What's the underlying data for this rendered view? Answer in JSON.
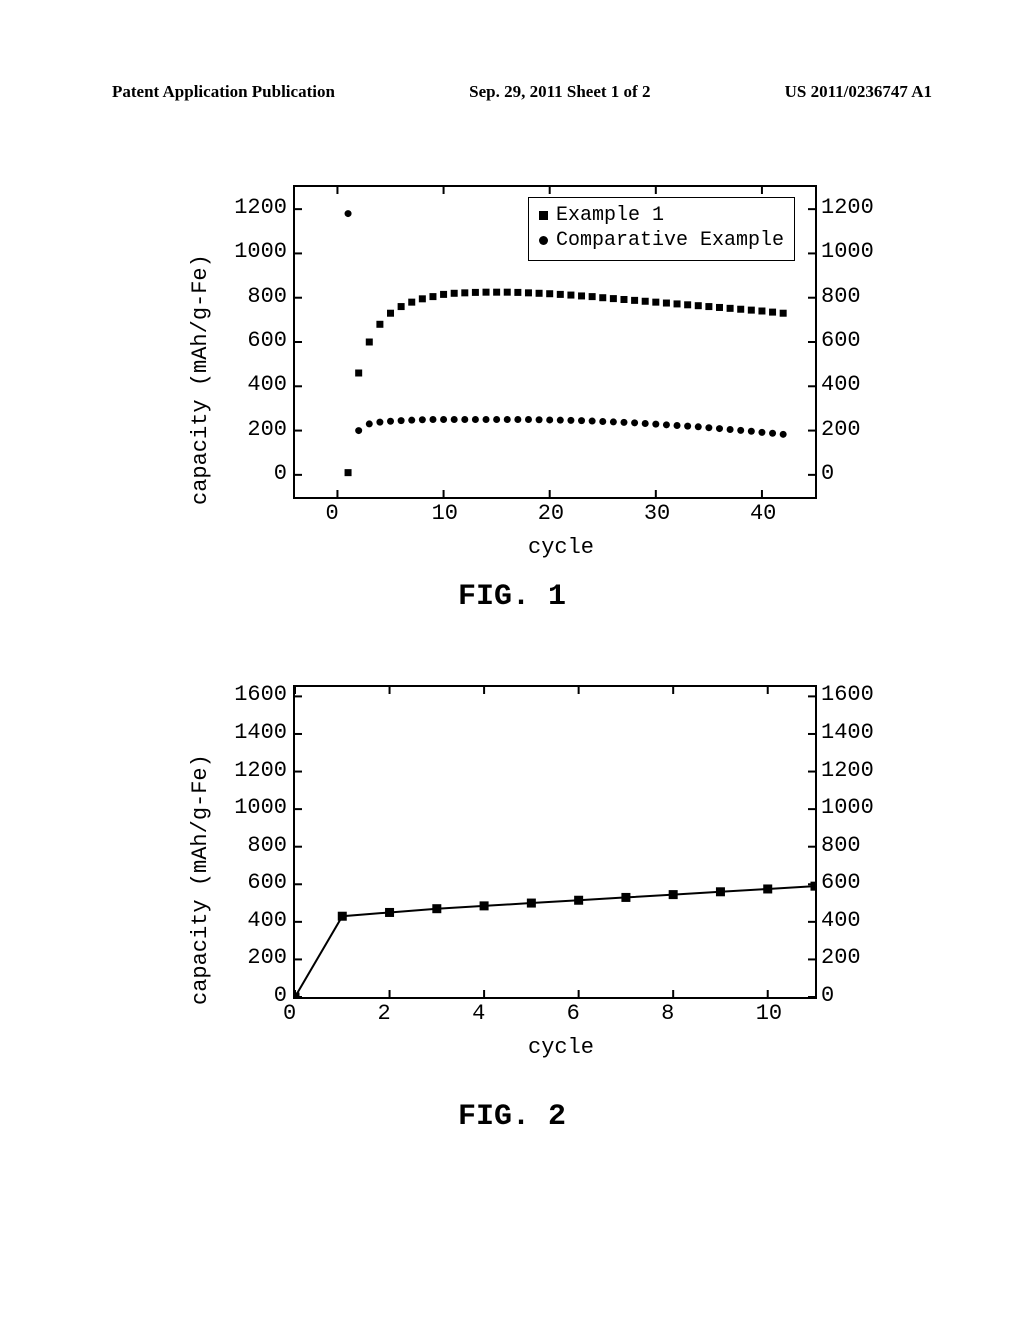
{
  "header": {
    "left": "Patent Application Publication",
    "center": "Sep. 29, 2011  Sheet 1 of 2",
    "right": "US 2011/0236747 A1"
  },
  "fig1": {
    "label": "FIG. 1",
    "type": "scatter",
    "xlabel": "cycle",
    "ylabel": "capacity (mAh/g-Fe)",
    "xlim": [
      -4,
      45
    ],
    "ylim": [
      -100,
      1300
    ],
    "xticks": [
      0,
      10,
      20,
      30,
      40
    ],
    "yticks": [
      0,
      200,
      400,
      600,
      800,
      1000,
      1200
    ],
    "right_yticks": [
      0,
      200,
      400,
      600,
      800,
      1000,
      1200
    ],
    "background_color": "#ffffff",
    "border_color": "#000000",
    "font_family": "Courier New",
    "label_fontsize": 22,
    "tick_fontsize": 22,
    "marker_size_sq": 7,
    "marker_size_ci": 7,
    "legend": {
      "position": "top-right-inside",
      "items": [
        {
          "marker": "square",
          "label": "Example 1",
          "color": "#000000"
        },
        {
          "marker": "circle",
          "label": "Comparative Example",
          "color": "#000000"
        }
      ]
    },
    "series": [
      {
        "name": "Example 1",
        "marker": "square",
        "color": "#000000",
        "x": [
          1,
          2,
          3,
          4,
          5,
          6,
          7,
          8,
          9,
          10,
          11,
          12,
          13,
          14,
          15,
          16,
          17,
          18,
          19,
          20,
          21,
          22,
          23,
          24,
          25,
          26,
          27,
          28,
          29,
          30,
          31,
          32,
          33,
          34,
          35,
          36,
          37,
          38,
          39,
          40,
          41,
          42
        ],
        "y": [
          10,
          460,
          600,
          680,
          730,
          760,
          780,
          795,
          805,
          815,
          820,
          822,
          824,
          825,
          825,
          825,
          824,
          822,
          820,
          818,
          815,
          812,
          808,
          805,
          800,
          796,
          792,
          788,
          784,
          780,
          776,
          772,
          768,
          764,
          760,
          756,
          752,
          748,
          744,
          740,
          735,
          730
        ]
      },
      {
        "name": "Comparative Example",
        "marker": "circle",
        "color": "#000000",
        "x": [
          1,
          2,
          3,
          4,
          5,
          6,
          7,
          8,
          9,
          10,
          11,
          12,
          13,
          14,
          15,
          16,
          17,
          18,
          19,
          20,
          21,
          22,
          23,
          24,
          25,
          26,
          27,
          28,
          29,
          30,
          31,
          32,
          33,
          34,
          35,
          36,
          37,
          38,
          39,
          40,
          41,
          42
        ],
        "y": [
          1180,
          200,
          230,
          238,
          242,
          245,
          247,
          249,
          250,
          250,
          250,
          250,
          250,
          250,
          250,
          250,
          250,
          250,
          249,
          248,
          247,
          246,
          245,
          243,
          241,
          239,
          237,
          235,
          232,
          229,
          226,
          223,
          220,
          217,
          213,
          209,
          205,
          201,
          197,
          192,
          188,
          183
        ]
      }
    ]
  },
  "fig2": {
    "label": "FIG. 2",
    "type": "line",
    "xlabel": "cycle",
    "ylabel": "capacity (mAh/g-Fe)",
    "xlim": [
      0,
      11
    ],
    "ylim": [
      0,
      1650
    ],
    "xticks": [
      0,
      2,
      4,
      6,
      8,
      10
    ],
    "yticks": [
      0,
      200,
      400,
      600,
      800,
      1000,
      1200,
      1400,
      1600
    ],
    "right_yticks": [
      0,
      200,
      400,
      600,
      800,
      1000,
      1200,
      1400,
      1600
    ],
    "background_color": "#ffffff",
    "border_color": "#000000",
    "font_family": "Courier New",
    "label_fontsize": 22,
    "tick_fontsize": 22,
    "marker_size_sq": 9,
    "line_width": 2,
    "series": [
      {
        "name": "Series",
        "marker": "square",
        "color": "#000000",
        "x": [
          0,
          1,
          2,
          3,
          4,
          5,
          6,
          7,
          8,
          9,
          10,
          11
        ],
        "y": [
          0,
          430,
          450,
          470,
          485,
          500,
          515,
          530,
          545,
          560,
          575,
          590
        ]
      }
    ]
  }
}
